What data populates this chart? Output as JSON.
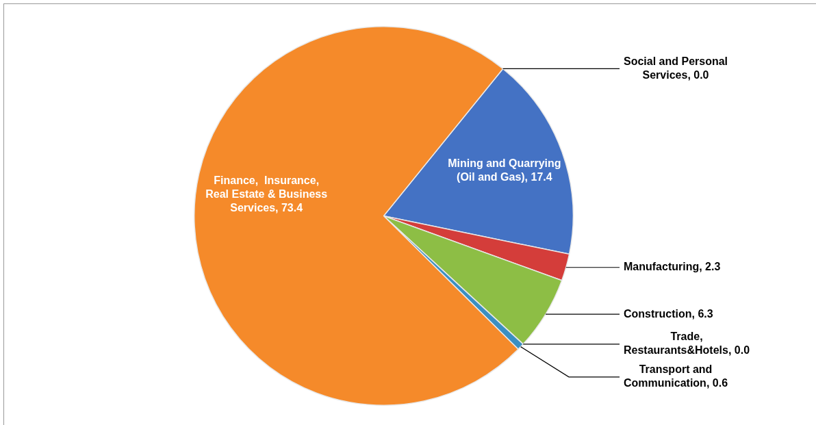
{
  "chart_data": {
    "type": "pie",
    "categories": [
      "Social and Personal Services",
      "Mining and Quarrying (Oil and Gas)",
      "Manufacturing",
      "Construction",
      "Trade, Restaurants&Hotels",
      "Transport and Communication",
      "Finance,  Insurance, Real Estate & Business Services"
    ],
    "values": [
      0.0,
      17.4,
      2.3,
      6.3,
      0.0,
      0.6,
      73.4
    ],
    "colors": [
      "#8064a2",
      "#4472c4",
      "#d43d3a",
      "#8dbe45",
      "#4bacc6",
      "#3a8fc2",
      "#f58a2a"
    ],
    "value_labels": [
      ", 0.0",
      ", 17.4",
      ", 2.3",
      ", 6.3",
      ", 0.0",
      ", 0.6",
      ", 73.4"
    ],
    "legend": false
  }
}
